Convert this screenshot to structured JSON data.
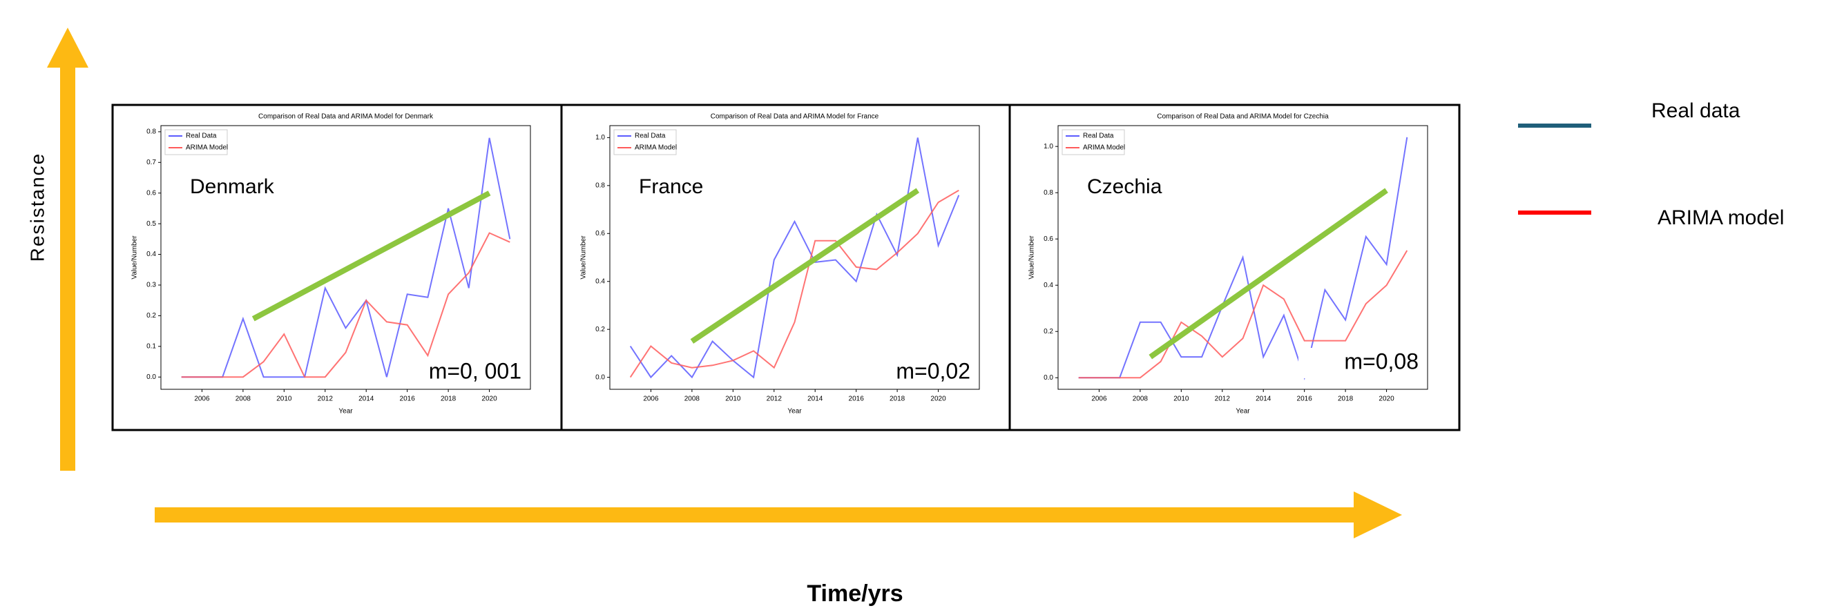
{
  "figure": {
    "y_label": "Resistance",
    "x_label": "Time/yrs",
    "legend": [
      {
        "name": "Real data",
        "color": "#1f5f7a"
      },
      {
        "name": "ARIMA model",
        "color": "#ff0000"
      }
    ]
  },
  "chart_data": [
    {
      "type": "line",
      "title": "Comparison of Real Data and ARIMA Model for Denmark",
      "x_label": "Year",
      "y_label": "Value/Number",
      "x": [
        2005,
        2006,
        2007,
        2008,
        2009,
        2010,
        2011,
        2012,
        2013,
        2014,
        2015,
        2016,
        2017,
        2018,
        2019,
        2020,
        2021
      ],
      "series": [
        {
          "name": "Real Data",
          "color": "#5a5aff",
          "values": [
            0,
            0,
            0,
            0.19,
            0,
            0,
            0,
            0.29,
            0.16,
            0.25,
            0,
            0.27,
            0.26,
            0.55,
            0.29,
            0.78,
            0.45
          ]
        },
        {
          "name": "ARIMA Model",
          "color": "#ff5a5a",
          "values": [
            0,
            0,
            0,
            0,
            0.05,
            0.14,
            0,
            0,
            0.08,
            0.25,
            0.18,
            0.17,
            0.07,
            0.27,
            0.34,
            0.47,
            0.44
          ]
        }
      ],
      "xlim": [
        2004,
        2022
      ],
      "ylim": [
        -0.04,
        0.82
      ],
      "xticks": [
        2006,
        2008,
        2010,
        2012,
        2014,
        2016,
        2018,
        2020
      ],
      "yticks": [
        {
          "value": 0,
          "label": "0.0"
        },
        0.1,
        0.2,
        0.3,
        0.4,
        0.5,
        0.6,
        0.7,
        0.8
      ],
      "trend": {
        "x": [
          2008.5,
          2020
        ],
        "y": [
          0.19,
          0.6
        ],
        "color": "#8dc63f"
      },
      "country_label": "Denmark",
      "slope_label": "m=0, 001"
    },
    {
      "type": "line",
      "title": "Comparison of Real Data and ARIMA Model for France",
      "x_label": "Year",
      "y_label": "Value/Number",
      "x": [
        2005,
        2006,
        2007,
        2008,
        2009,
        2010,
        2011,
        2012,
        2013,
        2014,
        2015,
        2016,
        2017,
        2018,
        2019,
        2020,
        2021
      ],
      "series": [
        {
          "name": "Real Data",
          "color": "#5a5aff",
          "values": [
            0.13,
            0,
            0.09,
            0,
            0.15,
            0.07,
            0,
            0.49,
            0.65,
            0.48,
            0.49,
            0.4,
            0.68,
            0.51,
            1.0,
            0.55,
            0.76
          ]
        },
        {
          "name": "ARIMA Model",
          "color": "#ff5a5a",
          "values": [
            0,
            0.13,
            0.06,
            0.04,
            0.05,
            0.07,
            0.11,
            0.04,
            0.23,
            0.57,
            0.57,
            0.46,
            0.45,
            0.52,
            0.6,
            0.73,
            0.78
          ]
        }
      ],
      "xlim": [
        2004,
        2022
      ],
      "ylim": [
        -0.05,
        1.05
      ],
      "xticks": [
        2006,
        2008,
        2010,
        2012,
        2014,
        2016,
        2018,
        2020
      ],
      "yticks": [
        {
          "value": 0,
          "label": "0.0"
        },
        0.2,
        0.4,
        0.6,
        0.8,
        {
          "value": 1,
          "label": "1.0"
        }
      ],
      "trend": {
        "x": [
          2008,
          2019
        ],
        "y": [
          0.15,
          0.78
        ],
        "color": "#8dc63f"
      },
      "country_label": "France",
      "slope_label": "m=0,02"
    },
    {
      "type": "line",
      "title": "Comparison of Real Data and ARIMA Model for Czechia",
      "x_label": "Year",
      "y_label": "Value/Number",
      "x": [
        2005,
        2006,
        2007,
        2008,
        2009,
        2010,
        2011,
        2012,
        2013,
        2014,
        2015,
        2016,
        2017,
        2018,
        2019,
        2020,
        2021
      ],
      "series": [
        {
          "name": "Real Data",
          "color": "#5a5aff",
          "values": [
            0,
            0,
            0,
            0.24,
            0.24,
            0.09,
            0.09,
            0.31,
            0.52,
            0.09,
            0.27,
            0,
            0.38,
            0.25,
            0.61,
            0.49,
            1.04
          ]
        },
        {
          "name": "ARIMA Model",
          "color": "#ff5a5a",
          "values": [
            0,
            0,
            0,
            0,
            0.07,
            0.24,
            0.18,
            0.09,
            0.17,
            0.4,
            0.34,
            0.16,
            0.16,
            0.16,
            0.32,
            0.4,
            0.55
          ]
        }
      ],
      "xlim": [
        2004,
        2022
      ],
      "ylim": [
        -0.05,
        1.09
      ],
      "xticks": [
        2006,
        2008,
        2010,
        2012,
        2014,
        2016,
        2018,
        2020
      ],
      "yticks": [
        {
          "value": 0,
          "label": "0.0"
        },
        0.2,
        0.4,
        0.6,
        0.8,
        {
          "value": 1,
          "label": "1.0"
        }
      ],
      "trend": {
        "x": [
          2008.5,
          2020
        ],
        "y": [
          0.09,
          0.81
        ],
        "color": "#8dc63f"
      },
      "country_label": "Czechia",
      "slope_label": "m=0,08"
    }
  ]
}
